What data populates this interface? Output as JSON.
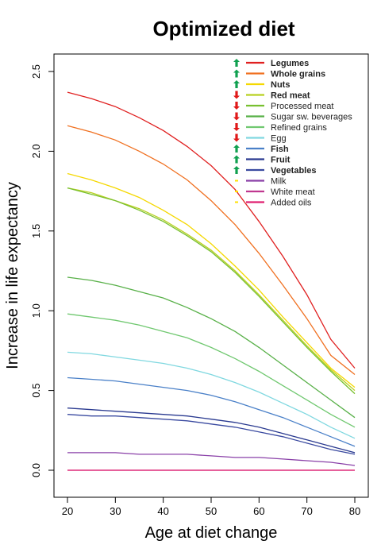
{
  "chart_data": {
    "type": "line",
    "title": "Optimized diet",
    "xlabel": "Age at diet change",
    "ylabel": "Increase in life expectancy",
    "xlim": [
      20,
      80
    ],
    "ylim": [
      0,
      2.5
    ],
    "xticks": [
      "20",
      "30",
      "40",
      "50",
      "60",
      "70",
      "80"
    ],
    "yticks": [
      "0.0",
      "0.5",
      "1.0",
      "1.5",
      "2.0",
      "2.5"
    ],
    "legend_position": "top-right",
    "x": [
      20,
      25,
      30,
      35,
      40,
      45,
      50,
      55,
      60,
      65,
      70,
      75,
      80
    ],
    "series": [
      {
        "name": "Legumes",
        "bold": true,
        "arrow": "up",
        "color": "#e02020",
        "values": [
          2.37,
          2.33,
          2.28,
          2.21,
          2.13,
          2.03,
          1.91,
          1.76,
          1.56,
          1.34,
          1.1,
          0.82,
          0.64
        ]
      },
      {
        "name": "Whole grains",
        "bold": true,
        "arrow": "up",
        "color": "#f07020",
        "values": [
          2.16,
          2.12,
          2.07,
          2.0,
          1.92,
          1.82,
          1.69,
          1.54,
          1.36,
          1.16,
          0.95,
          0.72,
          0.6
        ]
      },
      {
        "name": "Nuts",
        "bold": true,
        "arrow": "up",
        "color": "#f5d800",
        "values": [
          1.86,
          1.82,
          1.77,
          1.71,
          1.63,
          1.54,
          1.42,
          1.28,
          1.13,
          0.96,
          0.8,
          0.64,
          0.52
        ]
      },
      {
        "name": "Red meat",
        "bold": true,
        "arrow": "down",
        "color": "#b8d020",
        "values": [
          1.77,
          1.74,
          1.69,
          1.64,
          1.57,
          1.48,
          1.38,
          1.25,
          1.1,
          0.94,
          0.78,
          0.63,
          0.5
        ]
      },
      {
        "name": "Processed meat",
        "bold": false,
        "arrow": "down",
        "color": "#78c030",
        "values": [
          1.77,
          1.73,
          1.69,
          1.63,
          1.56,
          1.47,
          1.37,
          1.24,
          1.09,
          0.93,
          0.77,
          0.62,
          0.48
        ]
      },
      {
        "name": "Sugar  sw. beverages",
        "bold": false,
        "arrow": "down",
        "color": "#58b048",
        "values": [
          1.21,
          1.19,
          1.16,
          1.12,
          1.08,
          1.02,
          0.95,
          0.87,
          0.77,
          0.66,
          0.55,
          0.44,
          0.33
        ]
      },
      {
        "name": "Refined grains",
        "bold": false,
        "arrow": "down",
        "color": "#70c870",
        "values": [
          0.98,
          0.96,
          0.94,
          0.91,
          0.87,
          0.83,
          0.77,
          0.7,
          0.62,
          0.53,
          0.44,
          0.35,
          0.27
        ]
      },
      {
        "name": "Egg",
        "bold": false,
        "arrow": "down",
        "color": "#80d8e0",
        "values": [
          0.74,
          0.73,
          0.71,
          0.69,
          0.67,
          0.64,
          0.6,
          0.55,
          0.49,
          0.42,
          0.35,
          0.27,
          0.2
        ]
      },
      {
        "name": "Fish",
        "bold": true,
        "arrow": "up",
        "color": "#4a80c8",
        "values": [
          0.58,
          0.57,
          0.56,
          0.54,
          0.52,
          0.5,
          0.47,
          0.43,
          0.38,
          0.33,
          0.27,
          0.21,
          0.15
        ]
      },
      {
        "name": "Fruit",
        "bold": true,
        "arrow": "up",
        "color": "#2a3a90",
        "values": [
          0.39,
          0.38,
          0.37,
          0.36,
          0.35,
          0.34,
          0.32,
          0.3,
          0.27,
          0.23,
          0.19,
          0.15,
          0.11
        ]
      },
      {
        "name": "Vegetables",
        "bold": true,
        "arrow": "up",
        "color": "#3a4aa0",
        "values": [
          0.35,
          0.34,
          0.34,
          0.33,
          0.32,
          0.31,
          0.29,
          0.27,
          0.24,
          0.21,
          0.17,
          0.13,
          0.1
        ]
      },
      {
        "name": "Milk",
        "bold": false,
        "arrow": "none",
        "color": "#8a40a8",
        "values": [
          0.11,
          0.11,
          0.11,
          0.1,
          0.1,
          0.1,
          0.09,
          0.08,
          0.08,
          0.07,
          0.06,
          0.05,
          0.03
        ]
      },
      {
        "name": "White meat",
        "bold": false,
        "arrow": "none",
        "color": "#c03890",
        "values": [
          0.0,
          0.0,
          0.0,
          0.0,
          0.0,
          0.0,
          0.0,
          0.0,
          0.0,
          0.0,
          0.0,
          0.0,
          0.0
        ]
      },
      {
        "name": "Added oils",
        "bold": false,
        "arrow": "none",
        "color": "#e02070",
        "values": [
          0.0,
          0.0,
          0.0,
          0.0,
          0.0,
          0.0,
          0.0,
          0.0,
          0.0,
          0.0,
          0.0,
          0.0,
          0.0
        ]
      }
    ],
    "colors": {
      "arrow_up": "#10a050",
      "arrow_down": "#e01818",
      "neutral_marker": "#ffe000",
      "axis": "#000000"
    }
  }
}
